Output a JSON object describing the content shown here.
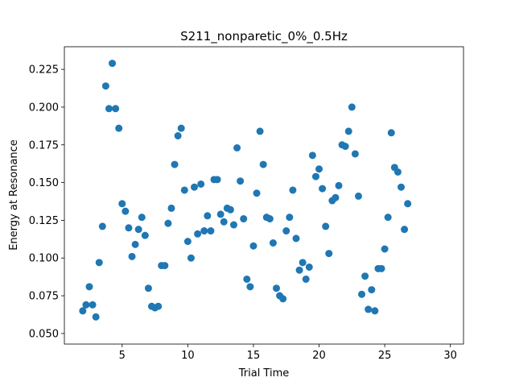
{
  "chart_data": {
    "type": "scatter",
    "title": "S211_nonparetic_0%_0.5Hz",
    "xlabel": "Trial Time",
    "ylabel": "Energy at Resonance",
    "xlim": [
      0.6,
      31.0
    ],
    "ylim": [
      0.043,
      0.24
    ],
    "xticks": [
      5,
      10,
      15,
      20,
      25,
      30
    ],
    "yticks": [
      0.05,
      0.075,
      0.1,
      0.125,
      0.15,
      0.175,
      0.2,
      0.225
    ],
    "xtick_labels": [
      "5",
      "10",
      "15",
      "20",
      "25",
      "30"
    ],
    "ytick_labels": [
      "0.050",
      "0.075",
      "0.100",
      "0.125",
      "0.150",
      "0.175",
      "0.200",
      "0.225"
    ],
    "grid": false,
    "marker_color": "#1f77b4",
    "series": [
      {
        "points": [
          [
            2.0,
            0.065
          ],
          [
            2.25,
            0.069
          ],
          [
            2.5,
            0.081
          ],
          [
            2.75,
            0.069
          ],
          [
            3.0,
            0.061
          ],
          [
            3.25,
            0.097
          ],
          [
            3.5,
            0.121
          ],
          [
            3.75,
            0.214
          ],
          [
            4.0,
            0.199
          ],
          [
            4.25,
            0.229
          ],
          [
            4.5,
            0.199
          ],
          [
            4.75,
            0.186
          ],
          [
            5.0,
            0.136
          ],
          [
            5.25,
            0.131
          ],
          [
            5.5,
            0.12
          ],
          [
            5.75,
            0.101
          ],
          [
            6.0,
            0.109
          ],
          [
            6.25,
            0.119
          ],
          [
            6.5,
            0.127
          ],
          [
            6.75,
            0.115
          ],
          [
            7.0,
            0.08
          ],
          [
            7.25,
            0.068
          ],
          [
            7.5,
            0.067
          ],
          [
            7.75,
            0.068
          ],
          [
            8.0,
            0.095
          ],
          [
            8.25,
            0.095
          ],
          [
            8.5,
            0.123
          ],
          [
            8.75,
            0.133
          ],
          [
            9.0,
            0.162
          ],
          [
            9.25,
            0.181
          ],
          [
            9.5,
            0.186
          ],
          [
            9.75,
            0.145
          ],
          [
            10.0,
            0.111
          ],
          [
            10.25,
            0.1
          ],
          [
            10.5,
            0.147
          ],
          [
            10.75,
            0.116
          ],
          [
            11.0,
            0.149
          ],
          [
            11.25,
            0.118
          ],
          [
            11.5,
            0.128
          ],
          [
            11.75,
            0.118
          ],
          [
            12.0,
            0.152
          ],
          [
            12.25,
            0.152
          ],
          [
            12.5,
            0.129
          ],
          [
            12.75,
            0.124
          ],
          [
            13.0,
            0.133
          ],
          [
            13.25,
            0.132
          ],
          [
            13.5,
            0.122
          ],
          [
            13.75,
            0.173
          ],
          [
            14.0,
            0.151
          ],
          [
            14.25,
            0.126
          ],
          [
            14.5,
            0.086
          ],
          [
            14.75,
            0.081
          ],
          [
            15.0,
            0.108
          ],
          [
            15.25,
            0.143
          ],
          [
            15.5,
            0.184
          ],
          [
            15.75,
            0.162
          ],
          [
            16.0,
            0.127
          ],
          [
            16.25,
            0.126
          ],
          [
            16.5,
            0.11
          ],
          [
            16.75,
            0.08
          ],
          [
            17.0,
            0.075
          ],
          [
            17.25,
            0.073
          ],
          [
            17.5,
            0.118
          ],
          [
            17.75,
            0.127
          ],
          [
            18.0,
            0.145
          ],
          [
            18.25,
            0.113
          ],
          [
            18.5,
            0.092
          ],
          [
            18.75,
            0.097
          ],
          [
            19.0,
            0.086
          ],
          [
            19.25,
            0.094
          ],
          [
            19.5,
            0.168
          ],
          [
            19.75,
            0.154
          ],
          [
            20.0,
            0.159
          ],
          [
            20.25,
            0.146
          ],
          [
            20.5,
            0.121
          ],
          [
            20.75,
            0.103
          ],
          [
            21.0,
            0.138
          ],
          [
            21.25,
            0.14
          ],
          [
            21.5,
            0.148
          ],
          [
            21.75,
            0.175
          ],
          [
            22.0,
            0.174
          ],
          [
            22.25,
            0.184
          ],
          [
            22.5,
            0.2
          ],
          [
            22.75,
            0.169
          ],
          [
            23.0,
            0.141
          ],
          [
            23.25,
            0.076
          ],
          [
            23.5,
            0.088
          ],
          [
            23.75,
            0.066
          ],
          [
            24.0,
            0.079
          ],
          [
            24.25,
            0.065
          ],
          [
            24.5,
            0.093
          ],
          [
            24.75,
            0.093
          ],
          [
            25.0,
            0.106
          ],
          [
            25.25,
            0.127
          ],
          [
            25.5,
            0.183
          ],
          [
            25.75,
            0.16
          ],
          [
            26.0,
            0.157
          ],
          [
            26.25,
            0.147
          ],
          [
            26.5,
            0.119
          ],
          [
            26.75,
            0.136
          ]
        ]
      }
    ]
  }
}
